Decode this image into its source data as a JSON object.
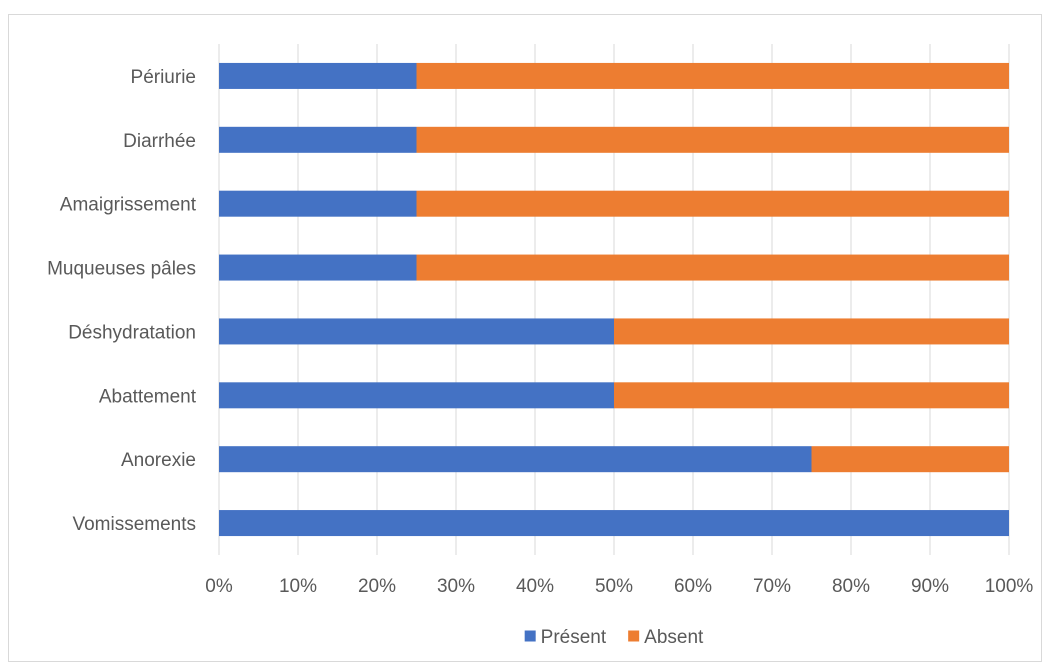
{
  "chart_data": {
    "type": "bar",
    "orientation": "horizontal",
    "stacked": "percent",
    "categories": [
      "Vomissements",
      "Anorexie",
      "Abattement",
      "Déshydratation",
      "Muqueuses pâles",
      "Amaigrissement",
      "Diarrhée",
      "Périurie"
    ],
    "series": [
      {
        "name": "Présent",
        "color": "#4472C4",
        "values": [
          100,
          75,
          50,
          50,
          25,
          25,
          25,
          25
        ]
      },
      {
        "name": "Absent",
        "color": "#ED7D31",
        "values": [
          0,
          25,
          50,
          50,
          75,
          75,
          75,
          75
        ]
      }
    ],
    "x_ticks": [
      "0%",
      "10%",
      "20%",
      "30%",
      "40%",
      "50%",
      "60%",
      "70%",
      "80%",
      "90%",
      "100%"
    ],
    "xlim": [
      0,
      100
    ],
    "title": "",
    "xlabel": "",
    "ylabel": "",
    "grid": "vertical",
    "legend_position": "bottom",
    "gridline_color": "#d9d9d9"
  }
}
